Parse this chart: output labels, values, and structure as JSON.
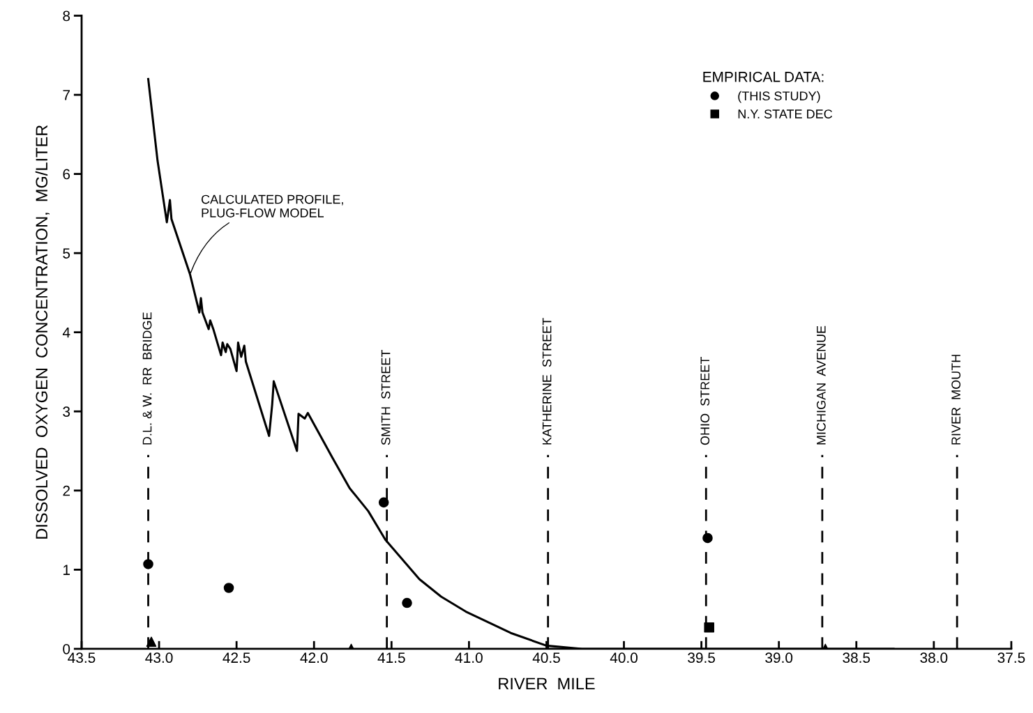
{
  "chart_data": {
    "type": "line",
    "xlabel": "RIVER  MILE",
    "ylabel": "DISSOLVED  OXYGEN  CONCENTRATION,  MG/LITER",
    "legend_title": "EMPIRICAL DATA:",
    "xlim": [
      43.5,
      37.5
    ],
    "xticks": [
      43.5,
      {
        "value": 43,
        "label": "43.0"
      },
      42.5,
      {
        "value": 42,
        "label": "42.0"
      },
      41.5,
      {
        "value": 41,
        "label": "41.0"
      },
      40.5,
      {
        "value": 40,
        "label": "40.0"
      },
      39.5,
      {
        "value": 39,
        "label": "39.0"
      },
      38.5,
      {
        "value": 38,
        "label": "38.0"
      },
      37.5
    ],
    "ylim": [
      0,
      8
    ],
    "yticks": [
      0,
      1,
      2,
      3,
      4,
      5,
      6,
      7,
      8
    ],
    "grid": false,
    "legend": "top right",
    "series": [
      {
        "color": "#000000",
        "line_style": "solid",
        "marker": "none",
        "x": [
          43.07,
          43.01,
          42.95,
          42.93,
          42.92,
          42.8,
          42.74,
          42.73,
          42.72,
          42.68,
          42.67,
          42.65,
          42.6,
          42.59,
          42.57,
          42.56,
          42.54,
          42.5,
          42.49,
          42.47,
          42.45,
          42.44,
          42.29,
          42.27,
          42.26,
          42.11,
          42.1,
          42.06,
          42.04,
          41.88,
          41.77,
          41.65,
          41.54,
          41.32,
          41.18,
          41.02,
          40.87,
          40.73,
          40.5,
          40.27,
          38.26
        ],
        "values": [
          7.2,
          6.17,
          5.39,
          5.67,
          5.43,
          4.73,
          4.25,
          4.43,
          4.25,
          4.04,
          4.15,
          4.04,
          3.71,
          3.87,
          3.75,
          3.85,
          3.79,
          3.51,
          3.87,
          3.69,
          3.83,
          3.63,
          2.69,
          3.09,
          3.38,
          2.5,
          2.97,
          2.91,
          2.98,
          2.41,
          2.03,
          1.74,
          1.38,
          0.88,
          0.66,
          0.47,
          0.33,
          0.2,
          0.04,
          0,
          0
        ]
      },
      {
        "type": "scatter",
        "name": "(THIS STUDY)",
        "color": "#000000",
        "marker": "circle",
        "x": [
          43.07,
          42.55,
          41.55,
          41.4,
          39.46
        ],
        "values": [
          1.07,
          0.77,
          1.85,
          0.58,
          1.4
        ]
      },
      {
        "type": "scatter",
        "color": "#000000",
        "marker": "triangle",
        "x": [
          43.05,
          41.76,
          38.7
        ],
        "values": [
          0.09,
          0,
          0
        ]
      },
      {
        "type": "scatter",
        "name": "N.Y. STATE DEC",
        "color": "#000000",
        "marker": "square",
        "x": [
          39.45
        ],
        "values": [
          0.27
        ]
      }
    ],
    "ref_lines": [
      {
        "axis": "x",
        "value": 43.07,
        "label": "D.L. & W.  RR  BRIDGE",
        "color": "#000000",
        "line_style": "dashed"
      },
      {
        "axis": "x",
        "value": 41.53,
        "label": "SMITH  STREET",
        "color": "#000000",
        "line_style": "dashed"
      },
      {
        "axis": "x",
        "value": 40.49,
        "label": "KATHERINE  STREET",
        "color": "#000000",
        "line_style": "dashed"
      },
      {
        "axis": "x",
        "value": 39.47,
        "label": "OHIO  STREET",
        "color": "#000000",
        "line_style": "dashed"
      },
      {
        "axis": "x",
        "value": 38.72,
        "label": "MICHIGAN  AVENUE",
        "color": "#000000",
        "line_style": "dashed"
      },
      {
        "axis": "x",
        "value": 37.85,
        "label": "RIVER  MOUTH",
        "color": "#000000",
        "line_style": "dashed"
      }
    ],
    "annotations": [
      {
        "text": "CALCULATED PROFILE,\nPLUG-FLOW MODEL",
        "x": 42.8,
        "y": 4.73
      }
    ]
  }
}
